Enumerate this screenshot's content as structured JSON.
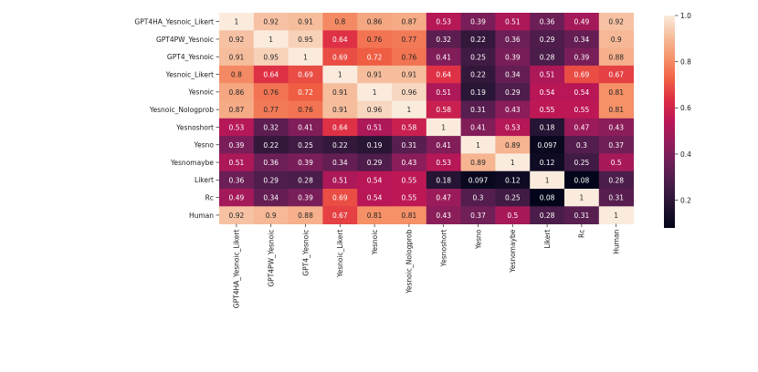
{
  "chart_data": {
    "type": "heatmap",
    "title": "",
    "xlabel": "",
    "ylabel": "",
    "labels": [
      "GPT4HA_Yesnoic_Likert",
      "GPT4PW_Yesnoic",
      "GPT4_Yesnoic",
      "Yesnoic_Likert",
      "Yesnoic",
      "Yesnoic_Nologprob",
      "Yesnoshort",
      "Yesno",
      "Yesnomaybe",
      "Likert",
      "Rc",
      "Human"
    ],
    "matrix": [
      [
        "1",
        "0.92",
        "0.91",
        "0.8",
        "0.86",
        "0.87",
        "0.53",
        "0.39",
        "0.51",
        "0.36",
        "0.49",
        "0.92"
      ],
      [
        "0.92",
        "1",
        "0.95",
        "0.64",
        "0.76",
        "0.77",
        "0.32",
        "0.22",
        "0.36",
        "0.29",
        "0.34",
        "0.9"
      ],
      [
        "0.91",
        "0.95",
        "1",
        "0.69",
        "0.72",
        "0.76",
        "0.41",
        "0.25",
        "0.39",
        "0.28",
        "0.39",
        "0.88"
      ],
      [
        "0.8",
        "0.64",
        "0.69",
        "1",
        "0.91",
        "0.91",
        "0.64",
        "0.22",
        "0.34",
        "0.51",
        "0.69",
        "0.67"
      ],
      [
        "0.86",
        "0.76",
        "0.72",
        "0.91",
        "1",
        "0.96",
        "0.51",
        "0.19",
        "0.29",
        "0.54",
        "0.54",
        "0.81"
      ],
      [
        "0.87",
        "0.77",
        "0.76",
        "0.91",
        "0.96",
        "1",
        "0.58",
        "0.31",
        "0.43",
        "0.55",
        "0.55",
        "0.81"
      ],
      [
        "0.53",
        "0.32",
        "0.41",
        "0.64",
        "0.51",
        "0.58",
        "1",
        "0.41",
        "0.53",
        "0.18",
        "0.47",
        "0.43"
      ],
      [
        "0.39",
        "0.22",
        "0.25",
        "0.22",
        "0.19",
        "0.31",
        "0.41",
        "1",
        "0.89",
        "0.097",
        "0.3",
        "0.37"
      ],
      [
        "0.51",
        "0.36",
        "0.39",
        "0.34",
        "0.29",
        "0.43",
        "0.53",
        "0.89",
        "1",
        "0.12",
        "0.25",
        "0.5"
      ],
      [
        "0.36",
        "0.29",
        "0.28",
        "0.51",
        "0.54",
        "0.55",
        "0.18",
        "0.097",
        "0.12",
        "1",
        "0.08",
        "0.28"
      ],
      [
        "0.49",
        "0.34",
        "0.39",
        "0.69",
        "0.54",
        "0.55",
        "0.47",
        "0.3",
        "0.25",
        "0.08",
        "1",
        "0.31"
      ],
      [
        "0.92",
        "0.9",
        "0.88",
        "0.67",
        "0.81",
        "0.81",
        "0.43",
        "0.37",
        "0.5",
        "0.28",
        "0.31",
        "1"
      ]
    ],
    "colorbar": {
      "range": [
        0.08,
        1.0
      ],
      "ticks": [
        "0.2",
        "0.4",
        "0.6",
        "0.8",
        "1.0"
      ],
      "colormap": "rocket",
      "stops": [
        "#03051a",
        "#221331",
        "#451c47",
        "#6a1f56",
        "#921c5b",
        "#b91657",
        "#dd2c45",
        "#f06043",
        "#f5936a",
        "#f6bc9b",
        "#faebdd"
      ]
    }
  }
}
